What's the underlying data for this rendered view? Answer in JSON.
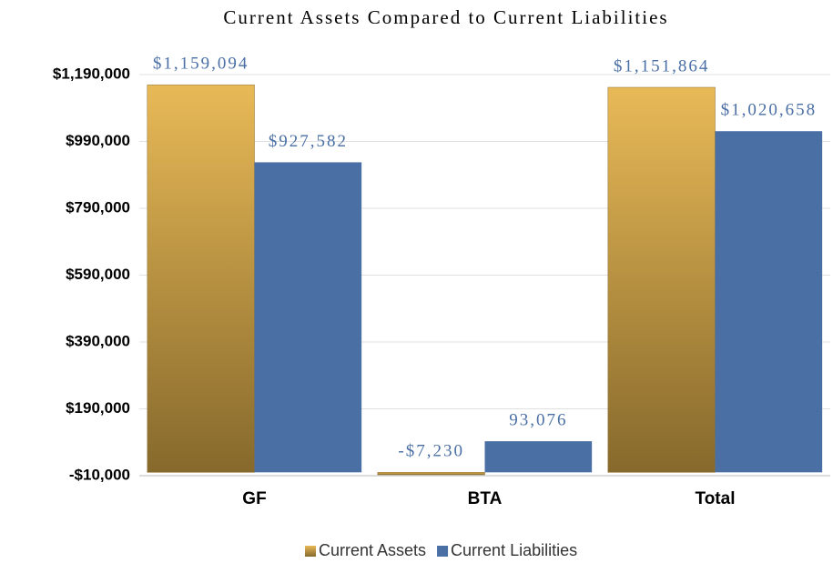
{
  "chart_data": {
    "type": "bar",
    "title": "Current Assets Compared to Current Liabilities",
    "categories": [
      "GF",
      "BTA",
      "Total"
    ],
    "series": [
      {
        "name": "Current Assets",
        "color": "#e8b957",
        "values": [
          1159094,
          -7230,
          1151864
        ],
        "value_labels": [
          "$1,159,094",
          "-$7,230",
          "$1,151,864"
        ]
      },
      {
        "name": "Current Liabilities",
        "color": "#4a6fa5",
        "values": [
          927582,
          93076,
          1020658
        ],
        "value_labels": [
          "$927,582",
          "93,076",
          "$1,020,658"
        ]
      }
    ],
    "ylim": [
      -10000,
      1190000
    ],
    "yticks": [
      {
        "value": -10000,
        "label": "-$10,000"
      },
      {
        "value": 190000,
        "label": "$190,000"
      },
      {
        "value": 390000,
        "label": "$390,000"
      },
      {
        "value": 590000,
        "label": "$590,000"
      },
      {
        "value": 790000,
        "label": "$790,000"
      },
      {
        "value": 990000,
        "label": "$990,000"
      },
      {
        "value": 1190000,
        "label": "$1,190,000"
      }
    ],
    "grid": true,
    "legend": "bottom"
  }
}
